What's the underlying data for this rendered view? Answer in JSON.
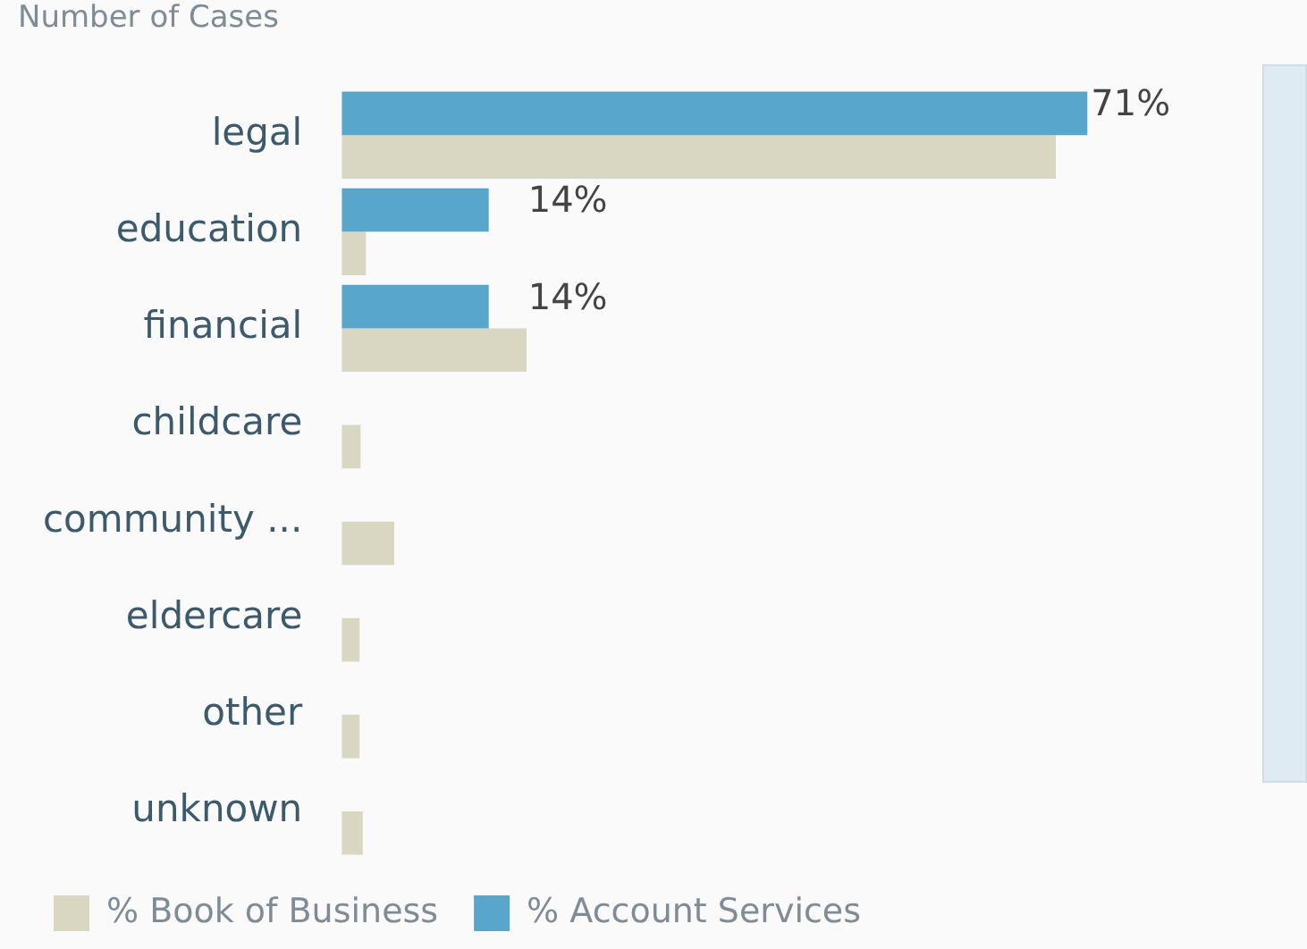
{
  "chart_data": {
    "type": "bar",
    "orientation": "horizontal",
    "title": "Number of Cases",
    "categories": [
      "legal",
      "education",
      "financial",
      "childcare",
      "community ...",
      "eldercare",
      "other",
      "unknown"
    ],
    "series": [
      {
        "name": "% Account Services",
        "color": "#58a6cb",
        "values": [
          71,
          14,
          14,
          0,
          0,
          0,
          0,
          0
        ],
        "value_labels": [
          "71%",
          "14%",
          "14%",
          null,
          null,
          null,
          null,
          null
        ]
      },
      {
        "name": "% Book of Business",
        "color": "#d9d6c2",
        "values": [
          68,
          2.3,
          17.6,
          1.8,
          5,
          1.7,
          1.7,
          2
        ]
      }
    ],
    "legend": "bottom left"
  }
}
